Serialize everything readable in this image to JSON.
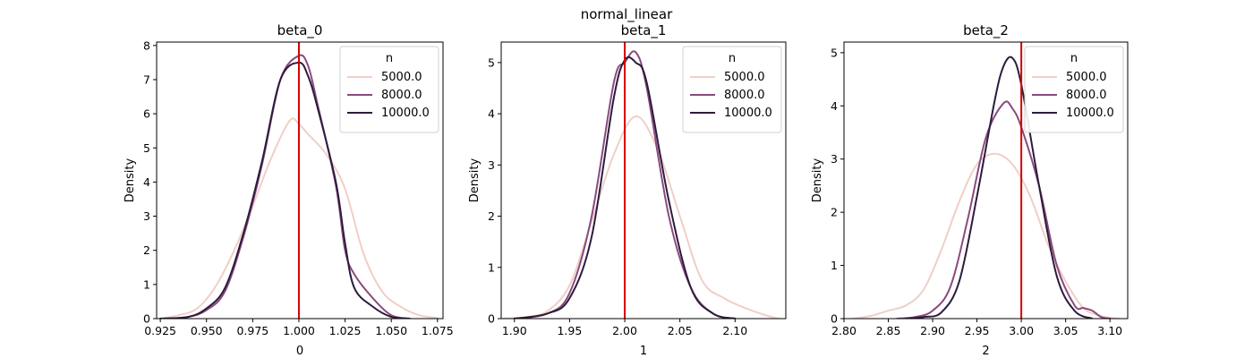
{
  "suptitle": "normal_linear",
  "series_colors": [
    "#efcfc7",
    "#8a4a7e",
    "#2d1b3c"
  ],
  "chart_data": [
    {
      "type": "line",
      "title": "beta_0",
      "xlabel": "0",
      "ylabel": "Density",
      "xlim": [
        0.923,
        1.078
      ],
      "ylim": [
        0,
        8.1
      ],
      "xticks": [
        0.925,
        0.95,
        0.975,
        1.0,
        1.025,
        1.05,
        1.075
      ],
      "xtick_labels": [
        "0.925",
        "0.950",
        "0.975",
        "1.000",
        "1.025",
        "1.050",
        "1.075"
      ],
      "yticks": [
        0,
        1,
        2,
        3,
        4,
        5,
        6,
        7,
        8
      ],
      "ytick_labels": [
        "0",
        "1",
        "2",
        "3",
        "4",
        "5",
        "6",
        "7",
        "8"
      ],
      "reference_x": 1.0,
      "legend": {
        "title": "n",
        "placement": "top-right"
      },
      "series": [
        {
          "name": "5000.0",
          "x": [
            0.925,
            0.935,
            0.945,
            0.955,
            0.965,
            0.975,
            0.985,
            0.995,
            1.0,
            1.005,
            1.015,
            1.025,
            1.035,
            1.045,
            1.055,
            1.065,
            1.075
          ],
          "y": [
            0.0,
            0.1,
            0.3,
            0.95,
            2.0,
            3.3,
            4.7,
            5.8,
            5.7,
            5.4,
            4.8,
            3.8,
            1.9,
            0.8,
            0.35,
            0.1,
            0.02
          ]
        },
        {
          "name": "8000.0",
          "x": [
            0.925,
            0.94,
            0.95,
            0.96,
            0.97,
            0.98,
            0.99,
            1.0,
            1.005,
            1.01,
            1.02,
            1.025,
            1.03,
            1.04,
            1.05,
            1.06
          ],
          "y": [
            0.0,
            0.05,
            0.25,
            0.8,
            2.4,
            4.5,
            7.0,
            7.7,
            7.4,
            6.3,
            3.9,
            2.0,
            1.3,
            0.6,
            0.1,
            0.0
          ]
        },
        {
          "name": "10000.0",
          "x": [
            0.925,
            0.94,
            0.95,
            0.96,
            0.97,
            0.98,
            0.99,
            1.0,
            1.005,
            1.01,
            1.02,
            1.025,
            1.03,
            1.04,
            1.05,
            1.06
          ],
          "y": [
            0.0,
            0.05,
            0.3,
            0.9,
            2.5,
            4.6,
            7.0,
            7.5,
            7.1,
            6.2,
            4.0,
            2.2,
            0.9,
            0.35,
            0.05,
            0.0
          ]
        }
      ]
    },
    {
      "type": "line",
      "title": "beta_1",
      "xlabel": "1",
      "ylabel": "Density",
      "xlim": [
        1.888,
        2.146
      ],
      "ylim": [
        0,
        5.4
      ],
      "xticks": [
        1.9,
        1.95,
        2.0,
        2.05,
        2.1
      ],
      "xtick_labels": [
        "1.90",
        "1.95",
        "2.00",
        "2.05",
        "2.10"
      ],
      "yticks": [
        0,
        1,
        2,
        3,
        4,
        5
      ],
      "ytick_labels": [
        "0",
        "1",
        "2",
        "3",
        "4",
        "5"
      ],
      "reference_x": 2.0,
      "legend": {
        "title": "n",
        "placement": "top-right"
      },
      "series": [
        {
          "name": "5000.0",
          "x": [
            1.89,
            1.91,
            1.93,
            1.95,
            1.97,
            1.99,
            2.01,
            2.03,
            2.05,
            2.07,
            2.09,
            2.11,
            2.13,
            2.14
          ],
          "y": [
            0.0,
            0.03,
            0.15,
            0.65,
            1.9,
            3.2,
            3.95,
            3.3,
            2.0,
            0.75,
            0.4,
            0.2,
            0.05,
            0.0
          ]
        },
        {
          "name": "8000.0",
          "x": [
            1.9,
            1.93,
            1.95,
            1.97,
            1.99,
            2.0,
            2.01,
            2.02,
            2.04,
            2.06,
            2.08,
            2.1
          ],
          "y": [
            0.0,
            0.1,
            0.5,
            2.0,
            4.6,
            5.0,
            5.2,
            4.5,
            2.0,
            0.6,
            0.1,
            0.0
          ]
        },
        {
          "name": "10000.0",
          "x": [
            1.9,
            1.93,
            1.95,
            1.97,
            1.99,
            2.0,
            2.01,
            2.02,
            2.04,
            2.06,
            2.08,
            2.1
          ],
          "y": [
            0.0,
            0.1,
            0.4,
            1.6,
            4.3,
            5.05,
            5.0,
            4.6,
            2.3,
            0.6,
            0.1,
            0.0
          ]
        }
      ]
    },
    {
      "type": "line",
      "title": "beta_2",
      "xlabel": "2",
      "ylabel": "Density",
      "xlim": [
        2.8,
        3.12
      ],
      "ylim": [
        0,
        5.2
      ],
      "xticks": [
        2.8,
        2.85,
        2.9,
        2.95,
        3.0,
        3.05,
        3.1
      ],
      "xtick_labels": [
        "2.80",
        "2.85",
        "2.90",
        "2.95",
        "3.00",
        "3.05",
        "3.10"
      ],
      "yticks": [
        0,
        1,
        2,
        3,
        4,
        5
      ],
      "ytick_labels": [
        "0",
        "1",
        "2",
        "3",
        "4",
        "5"
      ],
      "reference_x": 3.0,
      "legend": {
        "title": "n",
        "placement": "top-right"
      },
      "series": [
        {
          "name": "5000.0",
          "x": [
            2.81,
            2.83,
            2.85,
            2.87,
            2.89,
            2.91,
            2.93,
            2.95,
            2.97,
            2.99,
            3.01,
            3.03,
            3.05,
            3.07,
            3.09,
            3.11
          ],
          "y": [
            0.0,
            0.05,
            0.15,
            0.25,
            0.55,
            1.3,
            2.2,
            2.9,
            3.1,
            2.9,
            2.3,
            1.4,
            0.7,
            0.2,
            0.05,
            0.0
          ]
        },
        {
          "name": "8000.0",
          "x": [
            2.86,
            2.88,
            2.9,
            2.92,
            2.94,
            2.96,
            2.98,
            2.99,
            3.0,
            3.02,
            3.04,
            3.06,
            3.07,
            3.08,
            3.09,
            3.1
          ],
          "y": [
            0.0,
            0.03,
            0.15,
            0.6,
            1.9,
            3.4,
            4.05,
            3.95,
            3.6,
            2.5,
            1.0,
            0.25,
            0.2,
            0.15,
            0.03,
            0.0
          ]
        },
        {
          "name": "10000.0",
          "x": [
            2.87,
            2.89,
            2.91,
            2.93,
            2.95,
            2.97,
            2.98,
            2.99,
            3.0,
            3.02,
            3.04,
            3.06,
            3.08
          ],
          "y": [
            0.0,
            0.03,
            0.12,
            0.7,
            2.3,
            4.1,
            4.75,
            4.9,
            4.4,
            2.5,
            0.8,
            0.15,
            0.0
          ]
        }
      ]
    }
  ]
}
